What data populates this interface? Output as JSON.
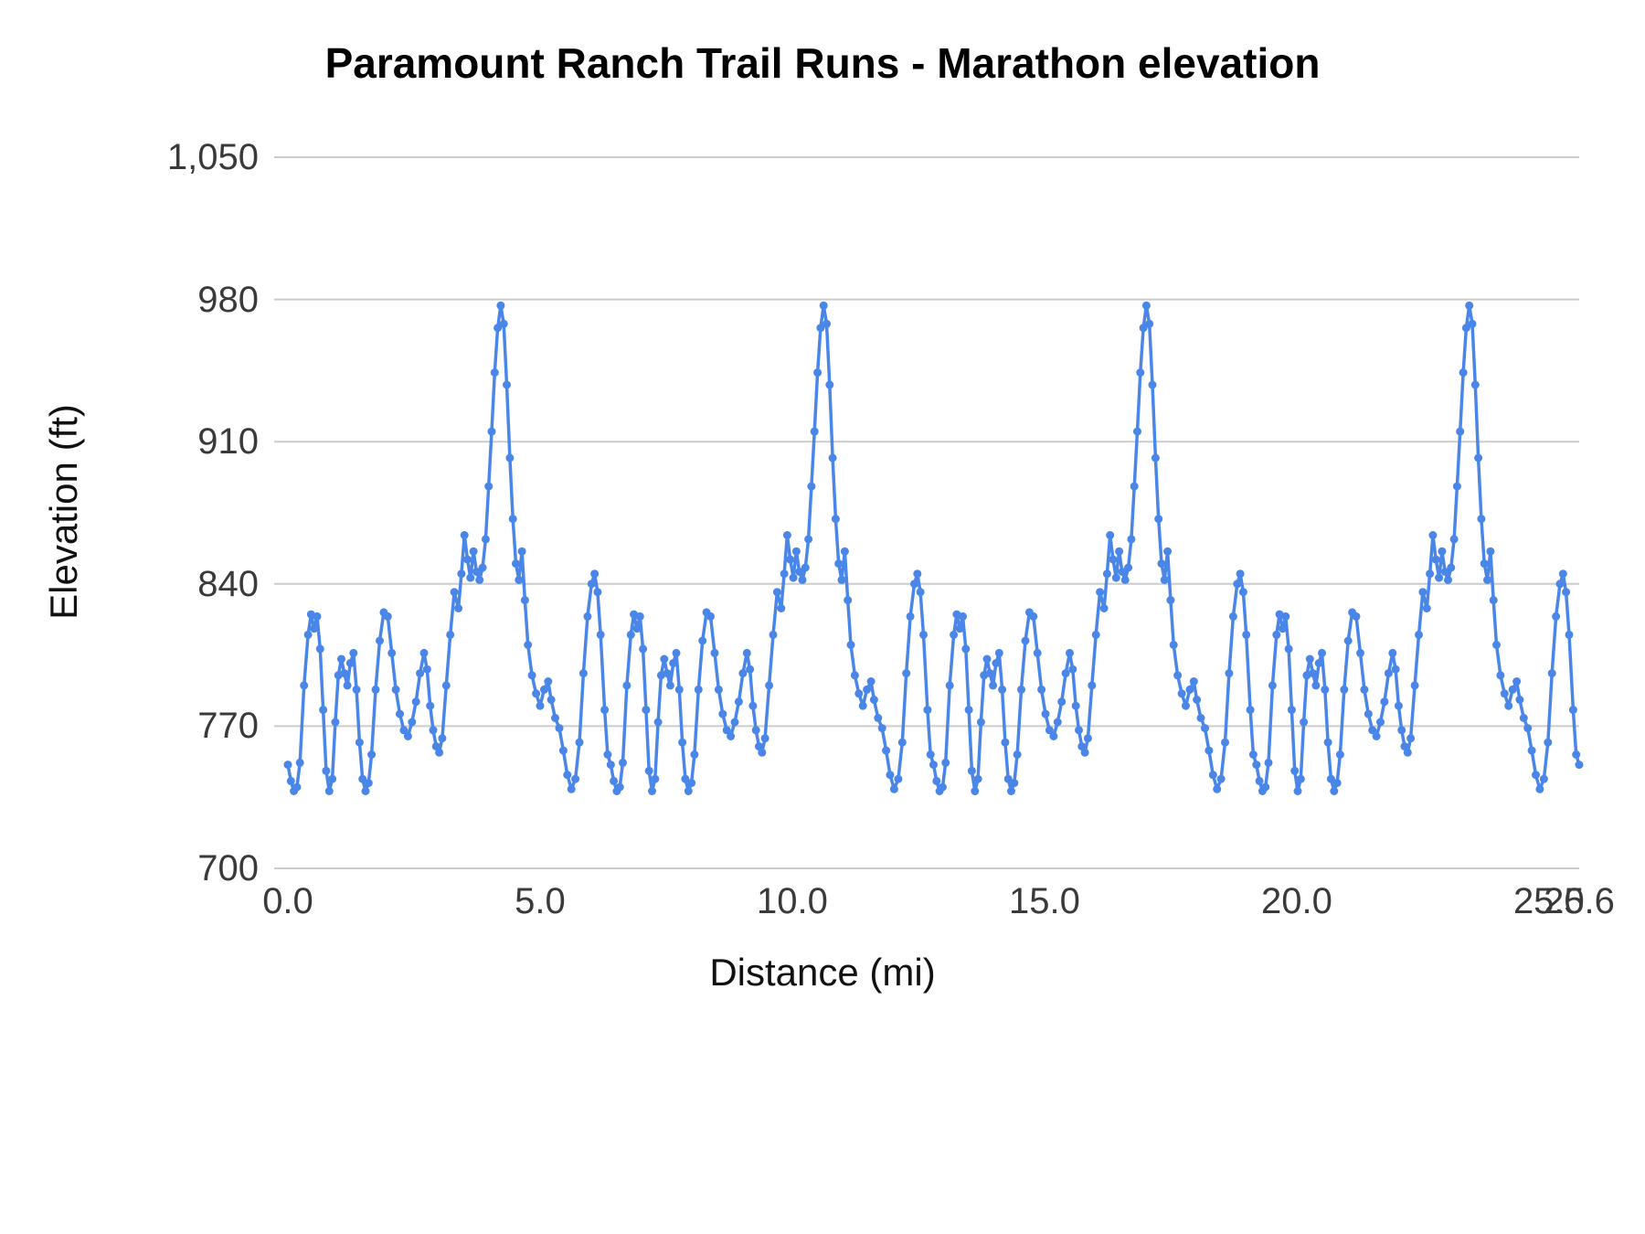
{
  "chart_data": {
    "type": "line",
    "title": "Paramount Ranch Trail Runs - Marathon elevation",
    "xlabel": "Distance (mi)",
    "ylabel": "Elevation (ft)",
    "xlim": [
      0,
      25.6
    ],
    "ylim": [
      700,
      1050
    ],
    "grid": "horizontal",
    "legend": "none",
    "line_color": "#4a86e8",
    "grid_color": "#cccccc",
    "point_radius_px": 4.5,
    "yticks": {
      "values": [
        700,
        770,
        840,
        910,
        980,
        1050
      ],
      "labels": [
        "700",
        "770",
        "840",
        "910",
        "980",
        "1,050"
      ]
    },
    "xticks": {
      "values": [
        0,
        5,
        10,
        15,
        20,
        25,
        25.6
      ],
      "labels": [
        "0.0",
        "5.0",
        "10.0",
        "15.0",
        "20.0",
        "25.0",
        "25.6"
      ]
    },
    "series_note": "Marathon course = 4 repeats of a 6.4 mi loop; full series is the loop profile below offset by k*6.4 mi for k=0..3, plus the end point.",
    "loop": {
      "length_mi": 6.4,
      "repeats": 4,
      "points": [
        [
          0.0,
          751
        ],
        [
          0.06,
          743
        ],
        [
          0.12,
          738
        ],
        [
          0.18,
          740
        ],
        [
          0.24,
          752
        ],
        [
          0.32,
          790
        ],
        [
          0.4,
          815
        ],
        [
          0.46,
          825
        ],
        [
          0.52,
          818
        ],
        [
          0.58,
          824
        ],
        [
          0.64,
          808
        ],
        [
          0.7,
          778
        ],
        [
          0.76,
          748
        ],
        [
          0.82,
          738
        ],
        [
          0.88,
          744
        ],
        [
          0.94,
          772
        ],
        [
          1.0,
          795
        ],
        [
          1.06,
          803
        ],
        [
          1.12,
          796
        ],
        [
          1.18,
          790
        ],
        [
          1.24,
          801
        ],
        [
          1.3,
          806
        ],
        [
          1.36,
          788
        ],
        [
          1.42,
          762
        ],
        [
          1.48,
          744
        ],
        [
          1.54,
          738
        ],
        [
          1.6,
          742
        ],
        [
          1.66,
          756
        ],
        [
          1.74,
          788
        ],
        [
          1.82,
          812
        ],
        [
          1.9,
          826
        ],
        [
          1.98,
          824
        ],
        [
          2.06,
          806
        ],
        [
          2.14,
          788
        ],
        [
          2.22,
          776
        ],
        [
          2.3,
          768
        ],
        [
          2.38,
          765
        ],
        [
          2.46,
          772
        ],
        [
          2.54,
          782
        ],
        [
          2.62,
          796
        ],
        [
          2.7,
          806
        ],
        [
          2.76,
          798
        ],
        [
          2.82,
          780
        ],
        [
          2.88,
          768
        ],
        [
          2.94,
          760
        ],
        [
          3.0,
          757
        ],
        [
          3.06,
          764
        ],
        [
          3.14,
          790
        ],
        [
          3.22,
          815
        ],
        [
          3.3,
          836
        ],
        [
          3.38,
          828
        ],
        [
          3.44,
          845
        ],
        [
          3.5,
          864
        ],
        [
          3.56,
          852
        ],
        [
          3.62,
          843
        ],
        [
          3.68,
          856
        ],
        [
          3.74,
          846
        ],
        [
          3.8,
          842
        ],
        [
          3.86,
          848
        ],
        [
          3.92,
          862
        ],
        [
          3.98,
          888
        ],
        [
          4.04,
          915
        ],
        [
          4.1,
          944
        ],
        [
          4.16,
          966
        ],
        [
          4.22,
          977
        ],
        [
          4.28,
          968
        ],
        [
          4.34,
          938
        ],
        [
          4.4,
          902
        ],
        [
          4.46,
          872
        ],
        [
          4.52,
          850
        ],
        [
          4.58,
          842
        ],
        [
          4.64,
          856
        ],
        [
          4.7,
          832
        ],
        [
          4.76,
          810
        ],
        [
          4.84,
          795
        ],
        [
          4.92,
          786
        ],
        [
          5.0,
          780
        ],
        [
          5.08,
          788
        ],
        [
          5.16,
          792
        ],
        [
          5.22,
          783
        ],
        [
          5.3,
          774
        ],
        [
          5.38,
          769
        ],
        [
          5.46,
          758
        ],
        [
          5.54,
          746
        ],
        [
          5.62,
          739
        ],
        [
          5.7,
          744
        ],
        [
          5.78,
          762
        ],
        [
          5.86,
          796
        ],
        [
          5.94,
          824
        ],
        [
          6.02,
          840
        ],
        [
          6.08,
          845
        ],
        [
          6.14,
          836
        ],
        [
          6.2,
          815
        ],
        [
          6.28,
          778
        ],
        [
          6.34,
          756
        ]
      ]
    },
    "end_point": [
      25.6,
      751
    ]
  }
}
